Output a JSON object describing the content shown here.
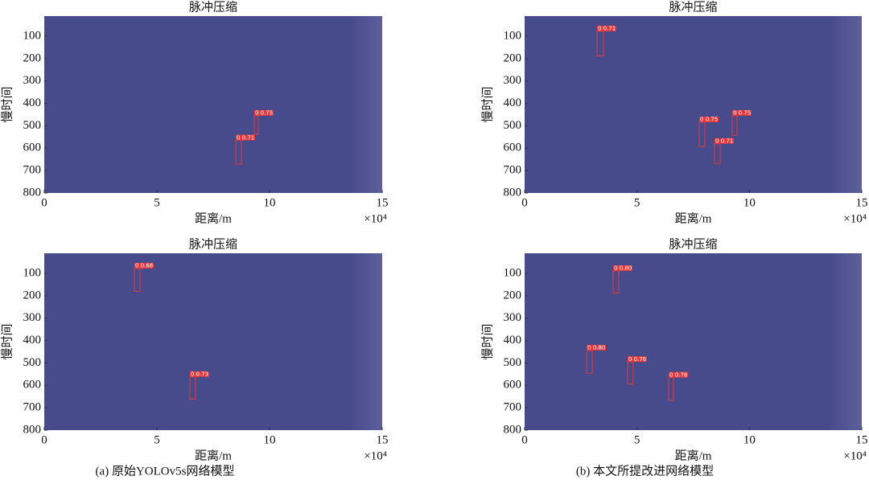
{
  "chart_data": [
    {
      "type": "image",
      "title": "脉冲压缩",
      "xlabel": "距离/m",
      "ylabel": "慢时间",
      "x_multiplier": "×10⁴",
      "xlim": [
        0,
        15
      ],
      "ylim": [
        10,
        800
      ],
      "y_reversed": true,
      "xticks": [
        0,
        5,
        10,
        15
      ],
      "yticks": [
        100,
        200,
        300,
        400,
        500,
        600,
        700,
        800
      ],
      "color": "#474a8b",
      "box_color": "#e8383d",
      "boxes": [
        {
          "x": [
            9.32,
            9.5
          ],
          "y": [
            455,
            539
          ],
          "label": "0 0.75"
        },
        {
          "x": [
            8.5,
            8.75
          ],
          "y": [
            565,
            671
          ],
          "label": "0 0.71"
        }
      ]
    },
    {
      "type": "image",
      "title": "脉冲压缩",
      "xlabel": "距离/m",
      "ylabel": "慢时间",
      "x_multiplier": "×10⁴",
      "xlim": [
        0,
        15
      ],
      "ylim": [
        10,
        800
      ],
      "y_reversed": true,
      "xticks": [
        0,
        5,
        10,
        15
      ],
      "yticks": [
        100,
        200,
        300,
        400,
        500,
        600,
        700,
        800
      ],
      "color": "#474a8b",
      "box_color": "#e8383d",
      "boxes": [
        {
          "x": [
            3.22,
            3.51
          ],
          "y": [
            78,
            188
          ],
          "label": "0 0.71"
        },
        {
          "x": [
            7.77,
            8.02
          ],
          "y": [
            484,
            593
          ],
          "label": "0 0.75"
        },
        {
          "x": [
            8.45,
            8.7
          ],
          "y": [
            580,
            668
          ],
          "label": "0 0.71"
        },
        {
          "x": [
            9.24,
            9.45
          ],
          "y": [
            455,
            543
          ],
          "label": "0 0.75"
        }
      ]
    },
    {
      "type": "image",
      "title": "脉冲压缩",
      "xlabel": "距离/m",
      "ylabel": "慢时间",
      "x_multiplier": "×10⁴",
      "xlim": [
        0,
        15
      ],
      "ylim": [
        10,
        800
      ],
      "y_reversed": true,
      "xticks": [
        0,
        5,
        10,
        15
      ],
      "yticks": [
        100,
        200,
        300,
        400,
        500,
        600,
        700,
        800
      ],
      "color": "#474a8b",
      "box_color": "#e8383d",
      "caption": "(a) 原始YOLOv5s网络模型",
      "boxes": [
        {
          "x": [
            4.0,
            4.25
          ],
          "y": [
            78,
            181
          ],
          "label": "0 0.68"
        },
        {
          "x": [
            6.46,
            6.71
          ],
          "y": [
            562,
            661
          ],
          "label": "0 0.73"
        }
      ]
    },
    {
      "type": "image",
      "title": "脉冲压缩",
      "xlabel": "距离/m",
      "ylabel": "慢时间",
      "x_multiplier": "×10⁴",
      "xlim": [
        0,
        15
      ],
      "ylim": [
        10,
        800
      ],
      "y_reversed": true,
      "xticks": [
        0,
        5,
        10,
        15
      ],
      "yticks": [
        100,
        200,
        300,
        400,
        500,
        600,
        700,
        800
      ],
      "color": "#474a8b",
      "box_color": "#e8383d",
      "caption": "(b) 本文所提改进网络模型",
      "boxes": [
        {
          "x": [
            3.94,
            4.19
          ],
          "y": [
            89,
            188
          ],
          "label": "0 0.80"
        },
        {
          "x": [
            2.76,
            3.01
          ],
          "y": [
            444,
            546
          ],
          "label": "0 0.80"
        },
        {
          "x": [
            4.58,
            4.83
          ],
          "y": [
            495,
            594
          ],
          "label": "0 0.76"
        },
        {
          "x": [
            6.41,
            6.62
          ],
          "y": [
            565,
            667
          ],
          "label": "0 0.78"
        }
      ]
    }
  ]
}
